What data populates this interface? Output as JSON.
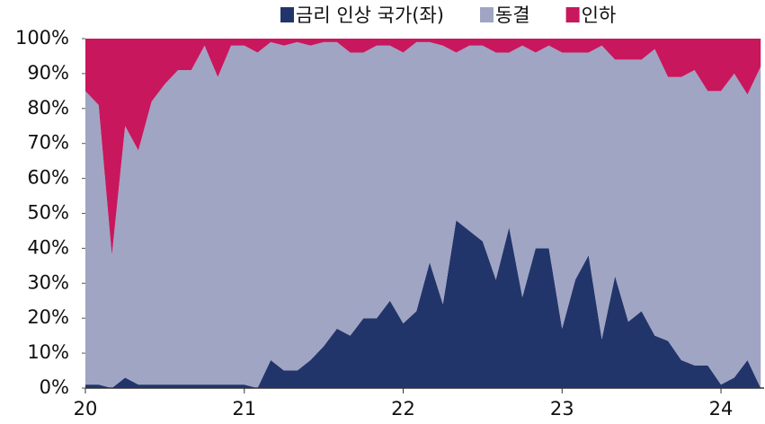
{
  "chart_data": {
    "type": "stacked_area",
    "categories": [
      "20",
      null,
      null,
      null,
      null,
      null,
      null,
      null,
      null,
      null,
      null,
      null,
      "21",
      null,
      null,
      null,
      null,
      null,
      null,
      null,
      null,
      null,
      null,
      null,
      "22",
      null,
      null,
      null,
      null,
      null,
      null,
      null,
      null,
      null,
      null,
      null,
      "23",
      null,
      null,
      null,
      null,
      null,
      null,
      null,
      null,
      null,
      null,
      null,
      "24",
      null,
      null,
      null
    ],
    "series": [
      {
        "name": "금리 인상 국가(좌)",
        "color": "#22356b",
        "values": [
          1,
          1,
          0,
          3,
          1,
          1,
          1,
          1,
          1,
          1,
          1,
          1,
          1,
          0,
          8,
          5,
          5,
          8,
          12,
          17,
          15,
          20,
          20,
          25,
          18.5,
          22,
          36,
          24,
          48,
          45,
          42,
          31,
          46,
          26,
          40,
          40,
          17,
          31,
          38,
          14,
          32,
          19,
          22,
          15,
          13.5,
          8,
          6.5,
          6.5,
          1,
          3,
          8,
          0
        ]
      },
      {
        "name": "동결",
        "color": "#a0a5c4",
        "values": [
          84,
          80,
          38,
          72,
          67,
          81,
          86,
          90,
          90,
          97,
          88,
          97,
          97,
          96,
          91,
          93,
          94,
          90,
          87,
          82,
          81,
          76,
          78,
          73,
          77.5,
          77,
          63,
          74,
          48,
          53,
          56,
          65,
          50,
          72,
          56,
          58,
          79,
          65,
          58,
          84,
          62,
          75,
          72,
          82,
          75.5,
          81,
          84.5,
          78.5,
          84,
          87,
          76,
          92
        ]
      },
      {
        "name": "인하",
        "color": "#c8175d",
        "values": [
          15,
          19,
          62,
          25,
          32,
          18,
          13,
          9,
          9,
          2,
          11,
          2,
          2,
          4,
          1,
          2,
          1,
          2,
          1,
          1,
          4,
          4,
          2,
          2,
          4,
          1,
          1,
          2,
          4,
          2,
          2,
          4,
          4,
          2,
          4,
          2,
          4,
          4,
          4,
          2,
          6,
          6,
          6,
          3,
          11,
          11,
          9,
          15,
          15,
          10,
          16,
          8
        ]
      }
    ],
    "ylim": [
      0,
      100
    ],
    "yticks": [
      {
        "value": 0,
        "label": "0%"
      },
      {
        "value": 10,
        "label": "10%"
      },
      {
        "value": 20,
        "label": "20%"
      },
      {
        "value": 30,
        "label": "30%"
      },
      {
        "value": 40,
        "label": "40%"
      },
      {
        "value": 50,
        "label": "50%"
      },
      {
        "value": 60,
        "label": "60%"
      },
      {
        "value": 70,
        "label": "70%"
      },
      {
        "value": 80,
        "label": "80%"
      },
      {
        "value": 90,
        "label": "90%"
      },
      {
        "value": 100,
        "label": "100%"
      }
    ],
    "grid": false,
    "legend": "top"
  }
}
